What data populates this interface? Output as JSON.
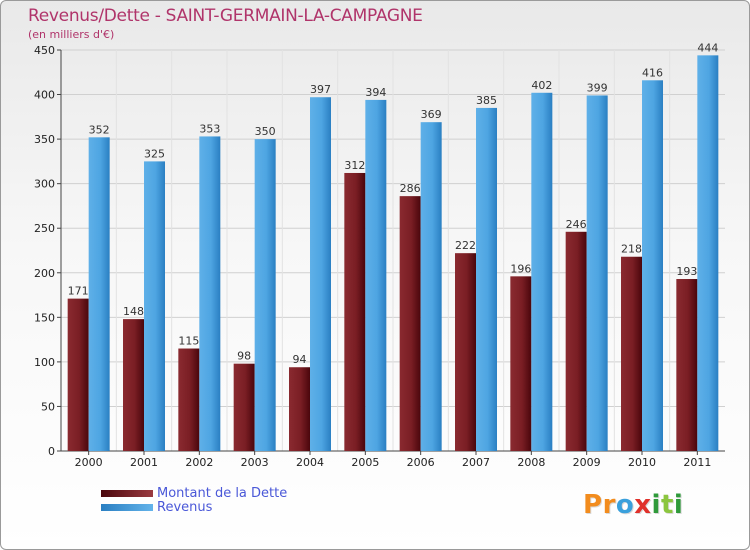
{
  "header": {
    "title": "Revenus/Dette - SAINT-GERMAIN-LA-CAMPAGNE",
    "subtitle": "(en milliers d'€)"
  },
  "colors": {
    "title": "#b0346a",
    "debt_dark": "#5a0a10",
    "debt_light": "#9a3a40",
    "revenue_dark": "#2f86c8",
    "revenue_light": "#63b3ea",
    "legend_text": "#4a58d8"
  },
  "chart_data": {
    "type": "bar",
    "categories": [
      "2000",
      "2001",
      "2002",
      "2003",
      "2004",
      "2005",
      "2006",
      "2007",
      "2008",
      "2009",
      "2010",
      "2011"
    ],
    "series": [
      {
        "name": "Montant de la Dette",
        "values": [
          171,
          148,
          115,
          98,
          94,
          312,
          286,
          222,
          196,
          246,
          218,
          193
        ]
      },
      {
        "name": "Revenus",
        "values": [
          352,
          325,
          353,
          350,
          397,
          394,
          369,
          385,
          402,
          399,
          416,
          444
        ]
      }
    ],
    "ylim": [
      0,
      450
    ],
    "yticks": [
      "0",
      "50",
      "100",
      "150",
      "200",
      "250",
      "300",
      "350",
      "400",
      "450"
    ],
    "grid": true,
    "legend_position": "bottom-left"
  },
  "legend": {
    "items": [
      {
        "label": "Montant de la Dette"
      },
      {
        "label": "Revenus"
      }
    ]
  },
  "logo": {
    "letters": [
      "P",
      "r",
      "o",
      "x",
      "i",
      "t",
      "i"
    ],
    "colors": [
      "#f28c1e",
      "#f28c1e",
      "#3aa0dc",
      "#e0312b",
      "#2f9a3a",
      "#8cc63f",
      "#2f9a3a"
    ]
  }
}
